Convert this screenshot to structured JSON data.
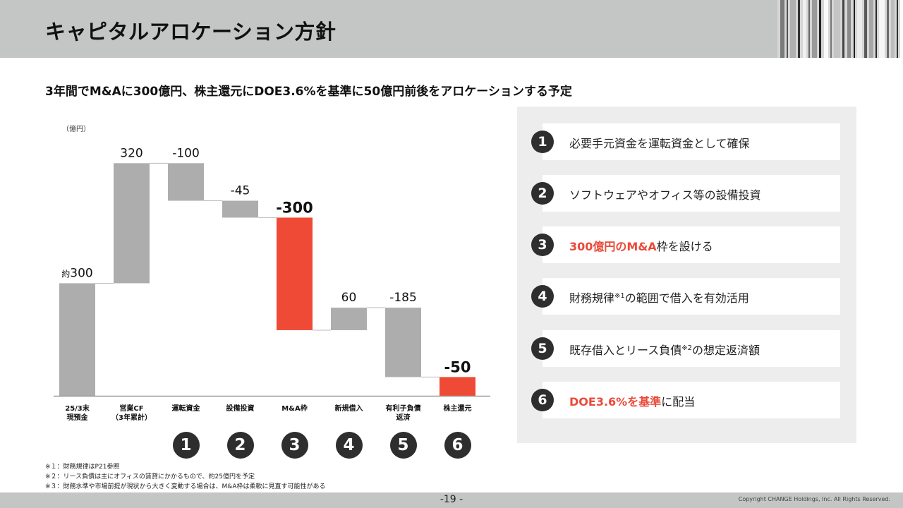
{
  "header": {
    "title": "キャピタルアロケーション方針"
  },
  "subtitle": "3年間でM&Aに300億円、株主還元にDOE3.6%を基準に50億円前後をアロケーションする予定",
  "chart_data": {
    "type": "bar",
    "subtype": "waterfall",
    "unit_label": "（億円）",
    "categories": [
      "25/3末\n現預金",
      "営業CF\n（3年累計）",
      "運転資金",
      "設備投資",
      "M&A枠",
      "新規借入",
      "有利子負債\n返済",
      "株主還元"
    ],
    "values": [
      300,
      320,
      -100,
      -45,
      -300,
      60,
      -185,
      -50
    ],
    "value_labels": [
      "300",
      "320",
      "-100",
      "-45",
      "-300",
      "60",
      "-185",
      "-50"
    ],
    "label_prefixes": [
      "約",
      "",
      "",
      "",
      "",
      "",
      "",
      ""
    ],
    "bold_labels": [
      false,
      false,
      false,
      false,
      true,
      false,
      false,
      true
    ],
    "highlight": [
      false,
      false,
      false,
      false,
      true,
      false,
      false,
      true
    ],
    "step_numbers": [
      "",
      "",
      "1",
      "2",
      "3",
      "4",
      "5",
      "6"
    ],
    "ylim": [
      0,
      630
    ],
    "colors": {
      "normal": "#adadad",
      "highlight": "#ef4a36",
      "connector": "#bbbbbb",
      "axis": "#9a9a9a"
    }
  },
  "panel": {
    "items": [
      {
        "num": "1",
        "text": "必要手元資金を運転資金として確保"
      },
      {
        "num": "2",
        "text": "ソフトウェアやオフィス等の設備投資"
      },
      {
        "num": "3",
        "highlight": "300億円のM&A",
        "rest": "枠を設ける"
      },
      {
        "num": "4",
        "pre": "財務規律",
        "sup": "※1",
        "rest": "の範囲で借入を有効活用"
      },
      {
        "num": "5",
        "pre": "既存借入とリース負債",
        "sup": "※2",
        "rest": "の想定返済額"
      },
      {
        "num": "6",
        "highlight": "DOE3.6%を基準",
        "rest": "に配当"
      }
    ]
  },
  "footnotes": [
    "※１：財務規律はP21参照",
    "※２：リース負債は主にオフィスの賃貸にかかるもので、約25億円を予定",
    "※３：財務水準や市場前提が現状から大きく変動する場合は、M&A枠は柔軟に見直す可能性がある"
  ],
  "footer": {
    "page": "-19 -",
    "copyright": "Copyright CHANGE Holdings, Inc. All Rights Reserved."
  }
}
